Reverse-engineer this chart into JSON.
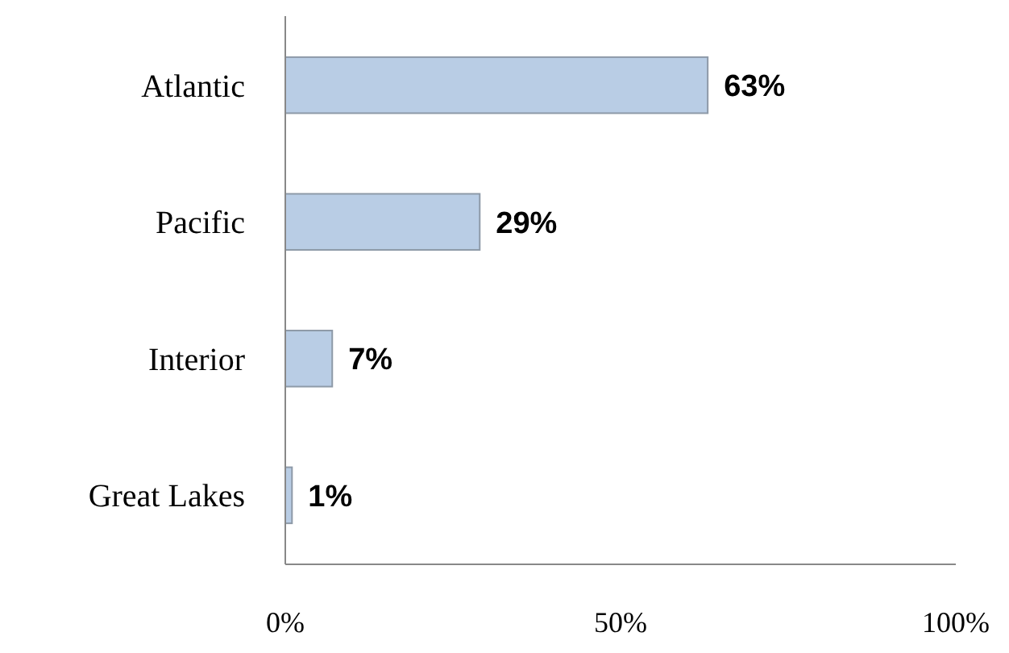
{
  "chart_data": {
    "type": "bar",
    "orientation": "horizontal",
    "categories": [
      "Atlantic",
      "Pacific",
      "Interior",
      "Great Lakes"
    ],
    "values": [
      63,
      29,
      7,
      1
    ],
    "value_labels": [
      "63%",
      "29%",
      "7%",
      "1%"
    ],
    "color": "#b9cde5",
    "xlim": [
      0,
      100
    ],
    "xticks": [
      {
        "value": 0,
        "label": "0%"
      },
      {
        "value": 50,
        "label": "50%"
      },
      {
        "value": 100,
        "label": "100%"
      }
    ],
    "grid": false
  }
}
